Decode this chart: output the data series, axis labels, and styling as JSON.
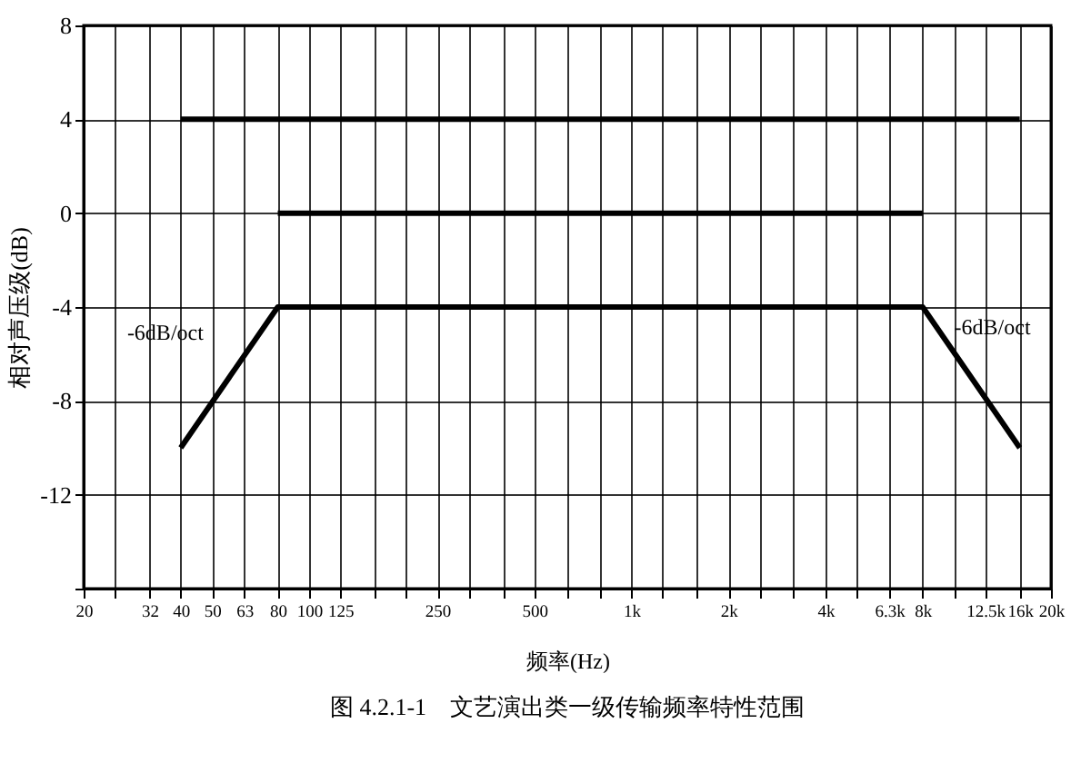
{
  "chart_data": {
    "type": "line",
    "title": "图 4.2.1-1　文艺演出类一级传输频率特性范围",
    "xlabel": "频率(Hz)",
    "ylabel": "相对声压级(dB)",
    "log": "x",
    "grid": true,
    "line_style": "solid",
    "marker": "none",
    "xlim": [
      20,
      20000
    ],
    "xticks": [
      20,
      {
        "value": 25,
        "label": null
      },
      32,
      40,
      50,
      63,
      80,
      100,
      125,
      {
        "value": 160,
        "label": null
      },
      {
        "value": 200,
        "label": null
      },
      250,
      {
        "value": 315,
        "label": null
      },
      {
        "value": 400,
        "label": null
      },
      500,
      {
        "value": 630,
        "label": null
      },
      {
        "value": 800,
        "label": null
      },
      {
        "value": 1000,
        "label": "1k"
      },
      {
        "value": 1250,
        "label": null
      },
      {
        "value": 1600,
        "label": null
      },
      {
        "value": 2000,
        "label": "2k"
      },
      {
        "value": 2500,
        "label": null
      },
      {
        "value": 3150,
        "label": null
      },
      {
        "value": 4000,
        "label": "4k"
      },
      {
        "value": 5000,
        "label": null
      },
      {
        "value": 6300,
        "label": "6.3k"
      },
      {
        "value": 8000,
        "label": "8k"
      },
      {
        "value": 10000,
        "label": null
      },
      {
        "value": 12500,
        "label": "12.5k"
      },
      {
        "value": 16000,
        "label": "16k"
      },
      {
        "value": 20000,
        "label": "20k"
      }
    ],
    "ylim": [
      -16,
      8
    ],
    "yticks": [
      {
        "value": -16,
        "label": null
      },
      -12,
      -8,
      -4,
      0,
      4,
      8
    ],
    "series": [
      {
        "color": "#000000",
        "x": [
          40,
          16000
        ],
        "values": [
          4,
          4
        ]
      },
      {
        "color": "#000000",
        "x": [
          80,
          8000
        ],
        "values": [
          0,
          0
        ]
      },
      {
        "color": "#000000",
        "x": [
          40,
          80,
          8000,
          16000
        ],
        "values": [
          -10,
          -4,
          -4,
          -10
        ]
      }
    ],
    "annotations": [
      "-6dB/oct",
      "-6dB/oct"
    ]
  }
}
